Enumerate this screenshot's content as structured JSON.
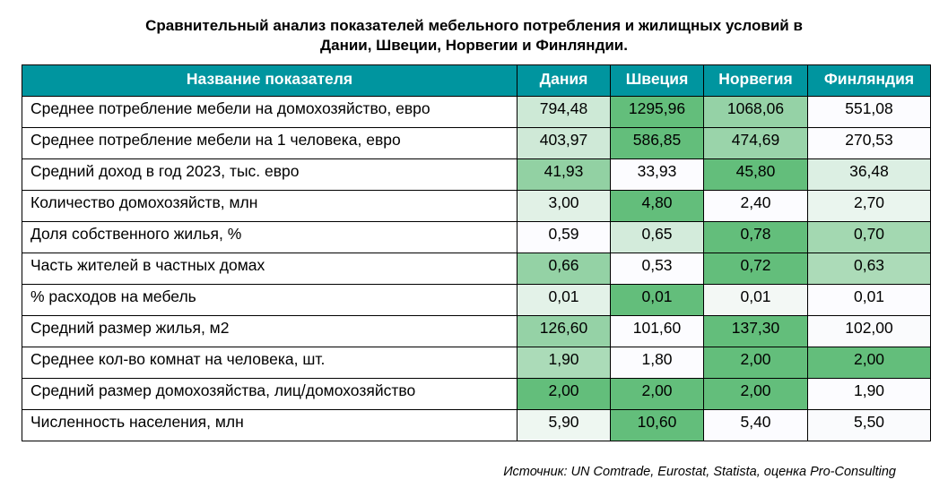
{
  "title_line1": "Сравнительный анализ показателей мебельного потребления и жилищных условий в",
  "title_line2": "Дании, Швеции, Норвегии и Финляндии.",
  "headers": [
    "Название показателя",
    "Дания",
    "Швеция",
    "Норвегия",
    "Финляндия"
  ],
  "header_color": "#00959f",
  "rows": [
    {
      "label": "Среднее потребление мебели на домохозяйство, евро",
      "values": [
        "794,48",
        "1295,96",
        "1068,06",
        "551,08"
      ],
      "colors": [
        "#cde9d6",
        "#63be7b",
        "#95d2a6",
        "#fcfcff"
      ]
    },
    {
      "label": "Среднее потребление мебели на 1 человека, евро",
      "values": [
        "403,97",
        "586,85",
        "474,69",
        "270,53"
      ],
      "colors": [
        "#cfe9d7",
        "#63be7b",
        "#9ad4aa",
        "#fcfcff"
      ]
    },
    {
      "label": "Средний доход в год 2023, тыс. евро",
      "values": [
        "41,93",
        "33,93",
        "45,80",
        "36,48"
      ],
      "colors": [
        "#92d1a3",
        "#fcfcff",
        "#63be7b",
        "#dcefe3"
      ]
    },
    {
      "label": "Количество домохозяйств, млн",
      "values": [
        "3,00",
        "4,80",
        "2,40",
        "2,70"
      ],
      "colors": [
        "#e1f1e6",
        "#63be7b",
        "#fcfcff",
        "#eaf5ee"
      ]
    },
    {
      "label": "Доля собственного жилья, %",
      "values": [
        "0,59",
        "0,65",
        "0,78",
        "0,70"
      ],
      "colors": [
        "#fcfcff",
        "#d3ebdb",
        "#63be7b",
        "#a3d8b1"
      ]
    },
    {
      "label": "Часть жителей в частных домах",
      "values": [
        "0,66",
        "0,53",
        "0,72",
        "0,63"
      ],
      "colors": [
        "#94d2a5",
        "#fcfcff",
        "#63be7b",
        "#acdbb8"
      ]
    },
    {
      "label": "% расходов на мебель",
      "values": [
        "0,01",
        "0,01",
        "0,01",
        "0,01"
      ],
      "colors": [
        "#e3f2e8",
        "#63be7b",
        "#f3f8f5",
        "#fcfcff"
      ]
    },
    {
      "label": "Средний размер жилья, м2",
      "values": [
        "126,60",
        "101,60",
        "137,30",
        "102,00"
      ],
      "colors": [
        "#95d2a6",
        "#fcfcff",
        "#63be7b",
        "#fafbfd"
      ]
    },
    {
      "label": "Среднее кол-во комнат на человека, шт.",
      "values": [
        "1,90",
        "1,80",
        "2,00",
        "2,00"
      ],
      "colors": [
        "#abdbb8",
        "#fcfcff",
        "#63be7b",
        "#63be7b"
      ]
    },
    {
      "label": "Средний размер домохозяйства, лиц/домохозяйство",
      "values": [
        "2,00",
        "2,00",
        "2,00",
        "1,90"
      ],
      "colors": [
        "#63be7b",
        "#63be7b",
        "#63be7b",
        "#fcfcff"
      ]
    },
    {
      "label": "Численность населения, млн",
      "values": [
        "5,90",
        "10,60",
        "5,40",
        "5,50"
      ],
      "colors": [
        "#eef7f1",
        "#63be7b",
        "#fcfcff",
        "#fafbfd"
      ]
    }
  ],
  "source": "Источник: UN Comtrade, Eurostat, Statista, оценка Pro-Consulting"
}
